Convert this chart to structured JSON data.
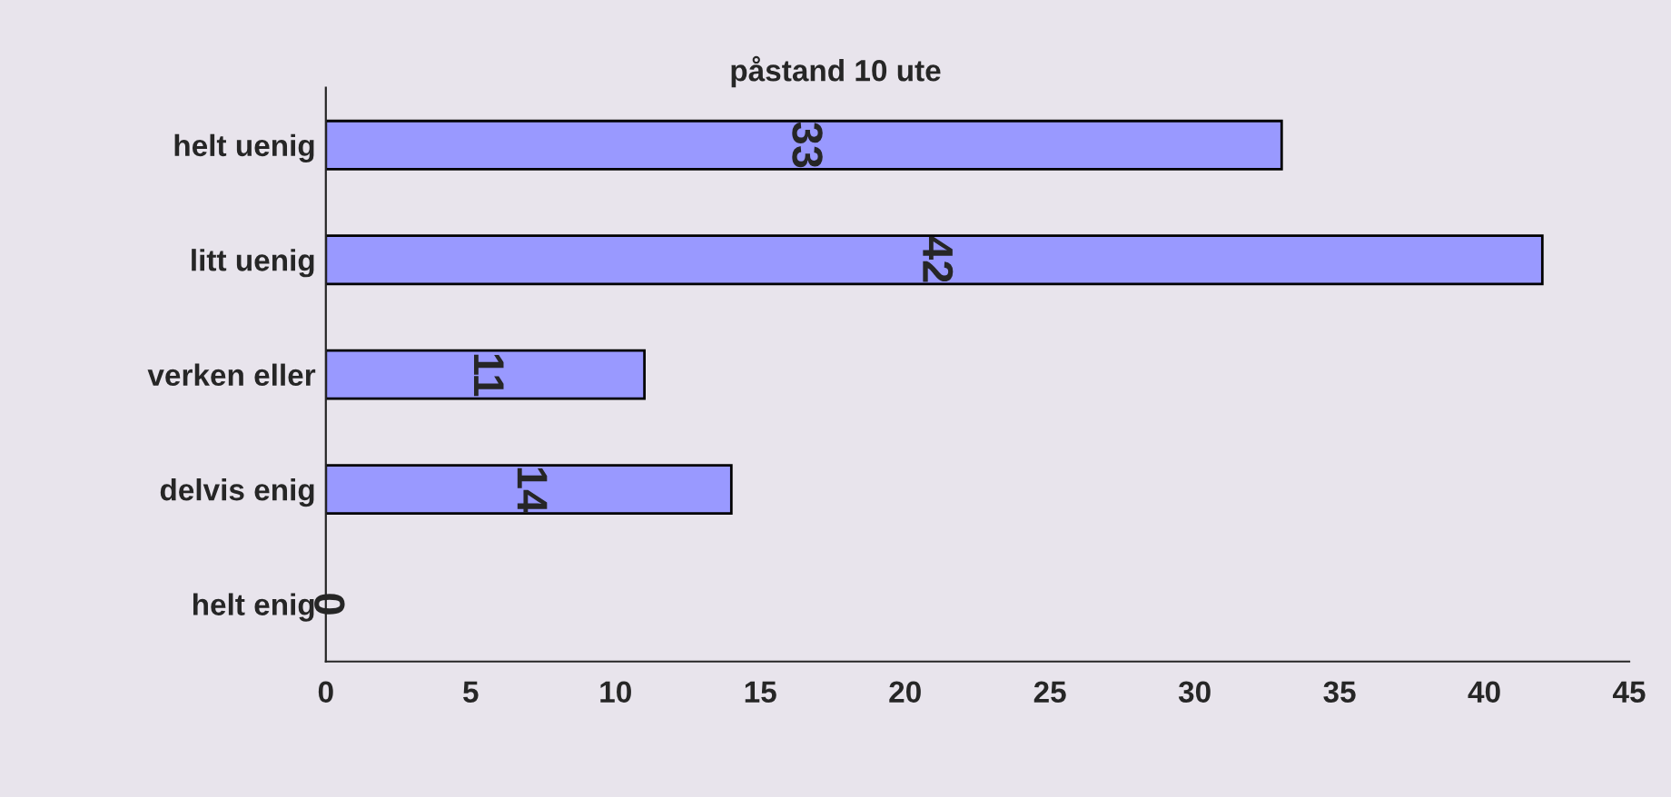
{
  "chart_data": {
    "type": "bar",
    "orientation": "horizontal",
    "title": "påstand 10 ute",
    "categories": [
      "helt uenig",
      "litt uenig",
      "verken eller",
      "delvis enig",
      "helt enig"
    ],
    "values": [
      33,
      42,
      11,
      14,
      0
    ],
    "color": "#9999ff",
    "xlim": [
      0,
      45
    ],
    "xticks": [
      0,
      5,
      10,
      15,
      20,
      25,
      30,
      35,
      40,
      45
    ],
    "data_labels": true,
    "grid": false,
    "legend": false
  }
}
